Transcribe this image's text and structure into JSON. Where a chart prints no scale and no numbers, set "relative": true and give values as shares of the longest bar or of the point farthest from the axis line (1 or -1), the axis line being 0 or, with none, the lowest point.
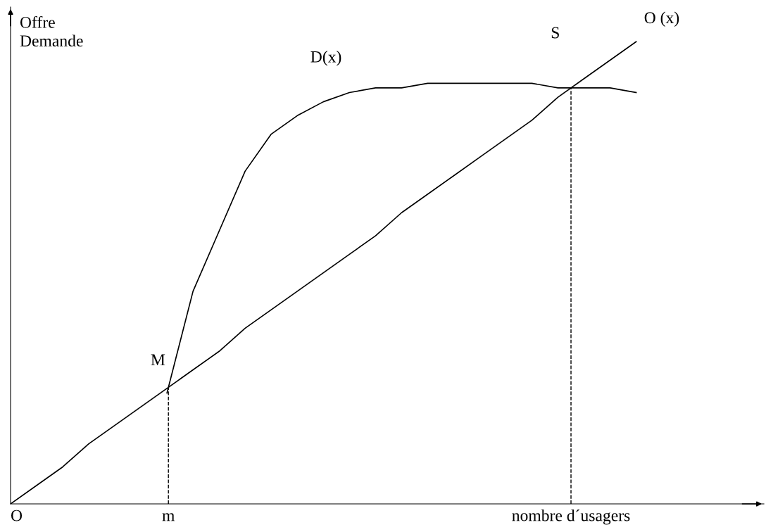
{
  "chart_data": {
    "type": "line",
    "relative": true,
    "xlabel": "nombre d´usagers",
    "ylabel": "Offre\nDemande",
    "categories": [
      null,
      null,
      null,
      null,
      null,
      null,
      null,
      null,
      null,
      null,
      null,
      null,
      null,
      null,
      null,
      null,
      null,
      null,
      null,
      null,
      null,
      null,
      null,
      null,
      null
    ],
    "series": [
      {
        "name": "O (x)",
        "color": "#000000",
        "values": [
          0,
          0.04,
          0.08,
          0.13,
          0.17,
          0.21,
          0.25,
          0.29,
          0.33,
          0.38,
          0.42,
          0.46,
          0.5,
          0.54,
          0.58,
          0.63,
          0.67,
          0.71,
          0.75,
          0.79,
          0.83,
          0.88,
          0.92,
          0.96,
          1
        ]
      },
      {
        "name": "D(x)",
        "color": "#000000",
        "values": [
          null,
          null,
          null,
          null,
          null,
          null,
          0.24,
          0.46,
          0.59,
          0.72,
          0.8,
          0.84,
          0.87,
          0.89,
          0.9,
          0.9,
          0.91,
          0.91,
          0.91,
          0.91,
          0.91,
          0.9,
          0.9,
          0.9,
          0.89
        ]
      }
    ],
    "annotations": [
      "O",
      "M",
      "S",
      "m"
    ],
    "line_style": "solid",
    "marker": "none"
  }
}
